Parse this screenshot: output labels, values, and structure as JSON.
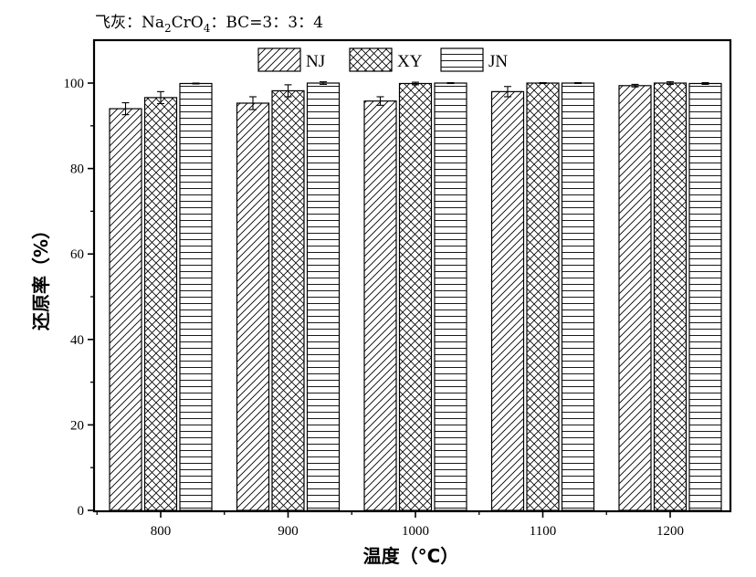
{
  "chart_data": {
    "type": "bar",
    "title_parts": {
      "prefix": "飞灰：Na",
      "sub1": "2",
      "mid": "CrO",
      "sub2": "4",
      "suffix": "：BC=3：3：4"
    },
    "xlabel": "温度（°C）",
    "ylabel": "还原率（%）",
    "categories": [
      "800",
      "900",
      "1000",
      "1100",
      "1200"
    ],
    "ylim": [
      0,
      110
    ],
    "yticks": [
      0,
      20,
      40,
      60,
      80,
      100
    ],
    "legend_position": "top-center",
    "series": [
      {
        "name": "NJ",
        "pattern": "diagonal",
        "values": [
          94.0,
          95.3,
          95.8,
          98.0,
          99.4
        ],
        "errors": [
          1.4,
          1.5,
          1.0,
          1.2,
          0.3
        ]
      },
      {
        "name": "XY",
        "pattern": "crosshatch",
        "values": [
          96.6,
          98.2,
          99.9,
          100.0,
          100.0
        ],
        "errors": [
          1.4,
          1.4,
          0.3,
          0.1,
          0.3
        ]
      },
      {
        "name": "JN",
        "pattern": "horizontal",
        "values": [
          99.9,
          100.0,
          100.0,
          100.0,
          99.9
        ],
        "errors": [
          0.1,
          0.3,
          0.1,
          0.1,
          0.2
        ]
      }
    ]
  }
}
